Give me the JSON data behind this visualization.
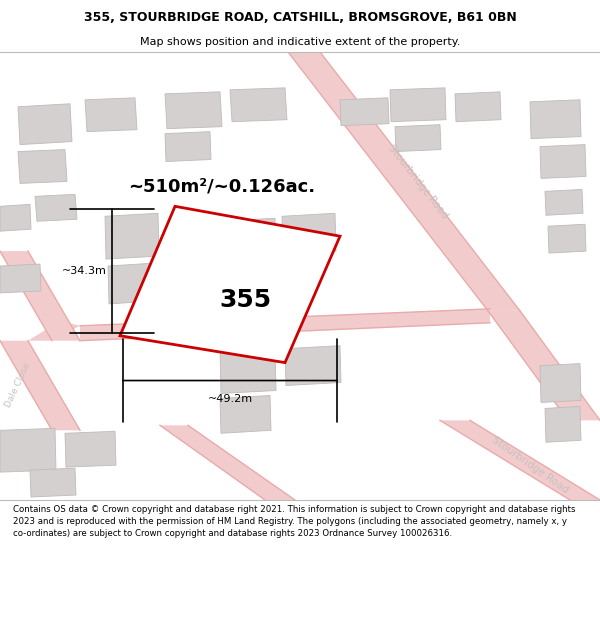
{
  "title_line1": "355, STOURBRIDGE ROAD, CATSHILL, BROMSGROVE, B61 0BN",
  "title_line2": "Map shows position and indicative extent of the property.",
  "footer_text": "Contains OS data © Crown copyright and database right 2021. This information is subject to Crown copyright and database rights 2023 and is reproduced with the permission of HM Land Registry. The polygons (including the associated geometry, namely x, y co-ordinates) are subject to Crown copyright and database rights 2023 Ordnance Survey 100026316.",
  "map_bg": "#ede9e9",
  "plot_outline_color": "#cc0000",
  "road_fill_color": "#f2cccc",
  "road_edge_color": "#e8aaaa",
  "building_color": "#d4d0d0",
  "building_outline": "#bfbbbb",
  "area_label": "~510m²/~0.126ac.",
  "number_label": "355",
  "dim_width": "~49.2m",
  "dim_height": "~34.3m",
  "street_label_color": "#c8c0c0"
}
